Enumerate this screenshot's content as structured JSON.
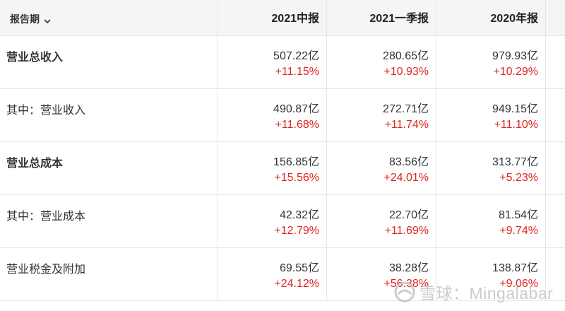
{
  "header": {
    "period_label": "报告期",
    "columns": [
      "2021中报",
      "2021一季报",
      "2020年报"
    ]
  },
  "rows": [
    {
      "label": "营业总收入",
      "bold": true,
      "values": [
        "507.22亿",
        "280.65亿",
        "979.93亿"
      ],
      "changes": [
        "+11.15%",
        "+10.93%",
        "+10.29%"
      ]
    },
    {
      "label": "其中：营业收入",
      "bold": false,
      "values": [
        "490.87亿",
        "272.71亿",
        "949.15亿"
      ],
      "changes": [
        "+11.68%",
        "+11.74%",
        "+11.10%"
      ]
    },
    {
      "label": "营业总成本",
      "bold": true,
      "values": [
        "156.85亿",
        "83.56亿",
        "313.77亿"
      ],
      "changes": [
        "+15.56%",
        "+24.01%",
        "+5.23%"
      ]
    },
    {
      "label": "其中：营业成本",
      "bold": false,
      "values": [
        "42.32亿",
        "22.70亿",
        "81.54亿"
      ],
      "changes": [
        "+12.79%",
        "+11.69%",
        "+9.74%"
      ]
    },
    {
      "label": "营业税金及附加",
      "bold": false,
      "values": [
        "69.55亿",
        "38.28亿",
        "138.87亿"
      ],
      "changes": [
        "+24.12%",
        "+56.38%",
        "+9.06%"
      ]
    }
  ],
  "watermark": {
    "text": "雪球：Mingalabar",
    "logo_icon": "snowball-logo-icon"
  },
  "colors": {
    "increase": "#e0251f",
    "header_bg": "#f5f5f5",
    "border": "#e6e6e6"
  },
  "icons": {
    "period_dropdown": "chevron-down-icon"
  }
}
